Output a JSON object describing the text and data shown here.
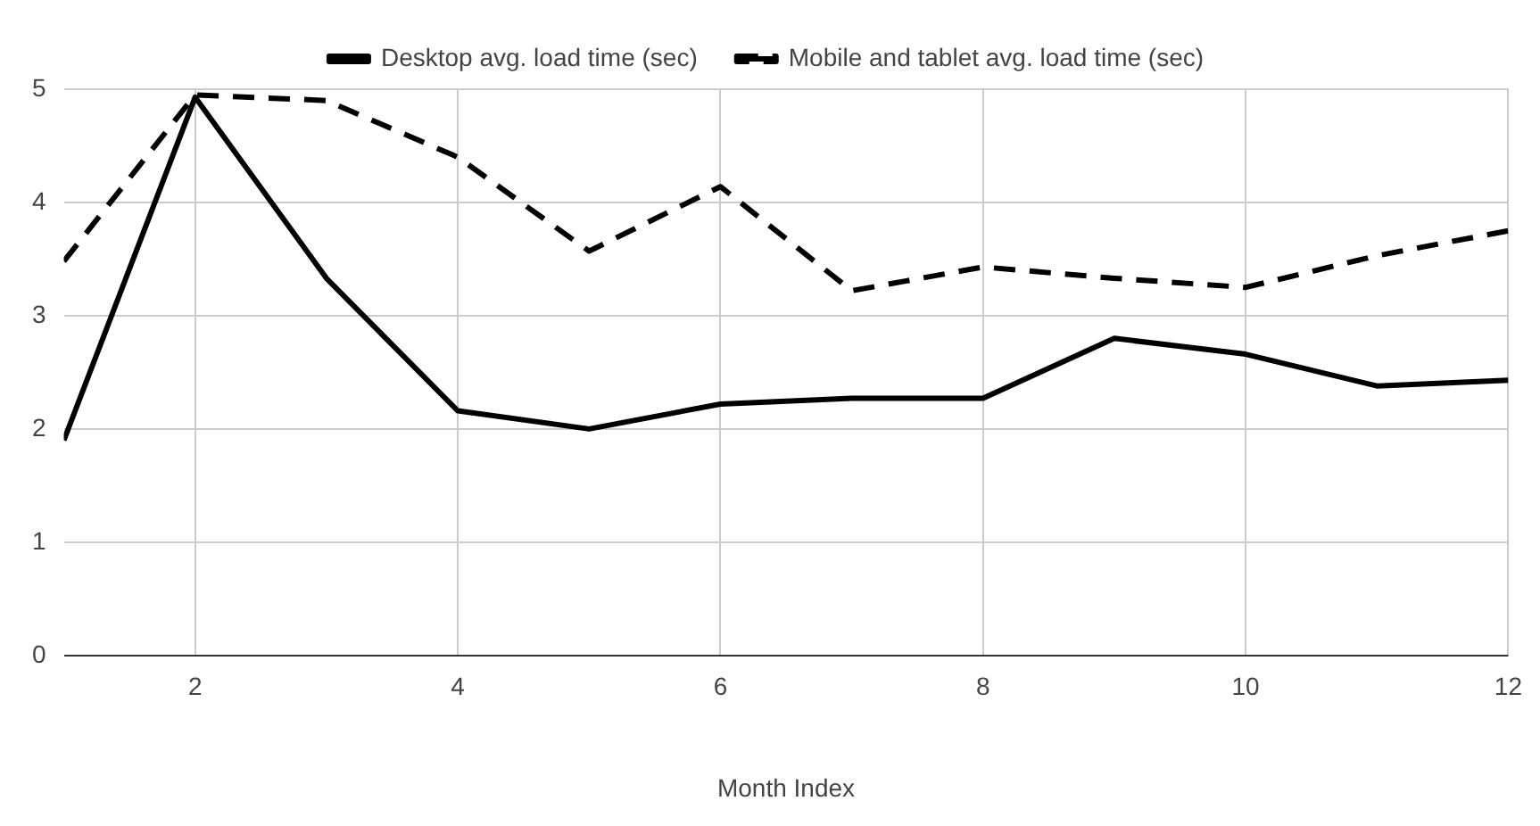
{
  "chart_data": {
    "type": "line",
    "xlabel": "Month Index",
    "x": [
      1,
      2,
      3,
      4,
      5,
      6,
      7,
      8,
      9,
      10,
      11,
      12
    ],
    "series": [
      {
        "name": "Desktop avg. load time (sec)",
        "color": "#000000",
        "line_style": "solid",
        "values": [
          1.9,
          4.93,
          3.33,
          2.16,
          2.0,
          2.22,
          2.27,
          2.27,
          2.8,
          2.66,
          2.38,
          2.43
        ]
      },
      {
        "name": "Mobile and tablet avg. load time (sec)",
        "color": "#000000",
        "line_style": "dashed",
        "values": [
          3.48,
          4.95,
          4.9,
          4.4,
          3.57,
          4.14,
          3.22,
          3.43,
          3.33,
          3.25,
          3.53,
          3.75
        ]
      }
    ],
    "xlim": [
      1,
      12
    ],
    "xticks": [
      2,
      4,
      6,
      8,
      10,
      12
    ],
    "ylim": [
      0,
      5
    ],
    "yticks": [
      0,
      1,
      2,
      3,
      4,
      5
    ],
    "grid": true,
    "legend": "top",
    "marker": "none"
  }
}
